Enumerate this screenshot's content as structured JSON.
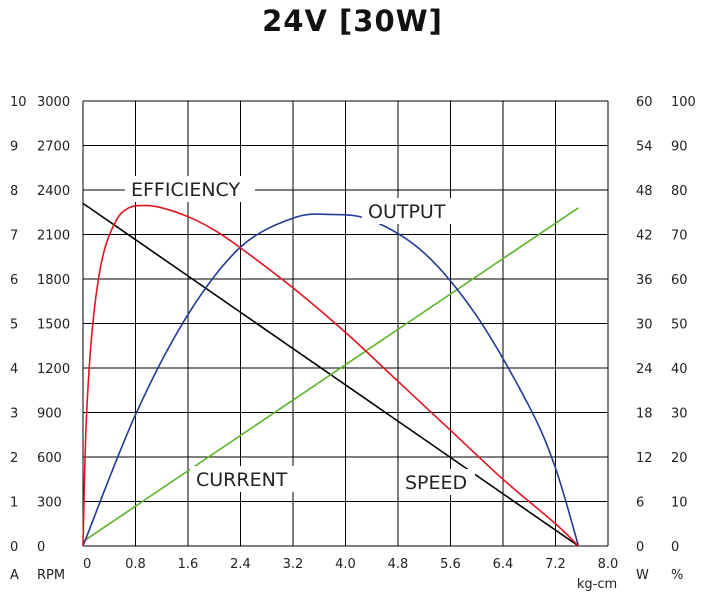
{
  "chart_data": {
    "type": "line",
    "title": "24V [30W]",
    "xlabel": "kg-cm",
    "x_ticks": [
      "0",
      "0.8",
      "1.6",
      "2.4",
      "3.2",
      "4.0",
      "4.8",
      "5.6",
      "6.4",
      "7.2",
      "8.0"
    ],
    "xlim": [
      0,
      8.0
    ],
    "axes": [
      {
        "unit": "A",
        "ticks": [
          "0",
          "1",
          "2",
          "3",
          "4",
          "5",
          "6",
          "7",
          "8",
          "9",
          "10"
        ],
        "range": [
          0,
          10
        ]
      },
      {
        "unit": "RPM",
        "ticks": [
          "0",
          "300",
          "600",
          "900",
          "1200",
          "1500",
          "1800",
          "2100",
          "2400",
          "2700",
          "3000"
        ],
        "range": [
          0,
          3000
        ]
      },
      {
        "unit": "W",
        "ticks": [
          "0",
          "6",
          "12",
          "18",
          "24",
          "30",
          "36",
          "42",
          "48",
          "54",
          "60"
        ],
        "range": [
          0,
          60
        ]
      },
      {
        "unit": "%",
        "ticks": [
          "0",
          "10",
          "20",
          "30",
          "40",
          "50",
          "60",
          "70",
          "80",
          "90",
          "100"
        ],
        "range": [
          0,
          100
        ]
      }
    ],
    "grid": true,
    "series": [
      {
        "name": "SPEED",
        "unit": "RPM",
        "color": "#000000",
        "x": [
          0,
          7.55
        ],
        "y": [
          2310,
          0
        ]
      },
      {
        "name": "CURRENT",
        "unit": "A",
        "color": "#5ab52a",
        "x": [
          0,
          7.55
        ],
        "y": [
          0.1,
          7.6
        ]
      },
      {
        "name": "OUTPUT",
        "unit": "W",
        "color": "#223a95",
        "x": [
          0,
          0.8,
          1.6,
          2.4,
          3.2,
          3.77,
          4.4,
          5.2,
          6.0,
          6.8,
          7.2,
          7.55
        ],
        "y": [
          0,
          17.7,
          31.2,
          40.3,
          44.2,
          44.7,
          43.9,
          39.5,
          31.0,
          18.8,
          10.5,
          0
        ]
      },
      {
        "name": "EFFICIENCY",
        "unit": "%",
        "color": "#e0141e",
        "x": [
          0,
          0.05,
          0.15,
          0.3,
          0.5,
          0.7,
          0.95,
          1.2,
          1.6,
          2.0,
          2.4,
          3.2,
          4.0,
          4.8,
          5.6,
          6.4,
          7.2,
          7.55
        ],
        "y": [
          0,
          28,
          50,
          65,
          73,
          76,
          76.5,
          76,
          74,
          71,
          67,
          58,
          48,
          37,
          26,
          15,
          5,
          0
        ]
      }
    ],
    "labels": {
      "efficiency": "EFFICIENCY",
      "output": "OUTPUT",
      "current": "CURRENT",
      "speed": "SPEED"
    }
  }
}
